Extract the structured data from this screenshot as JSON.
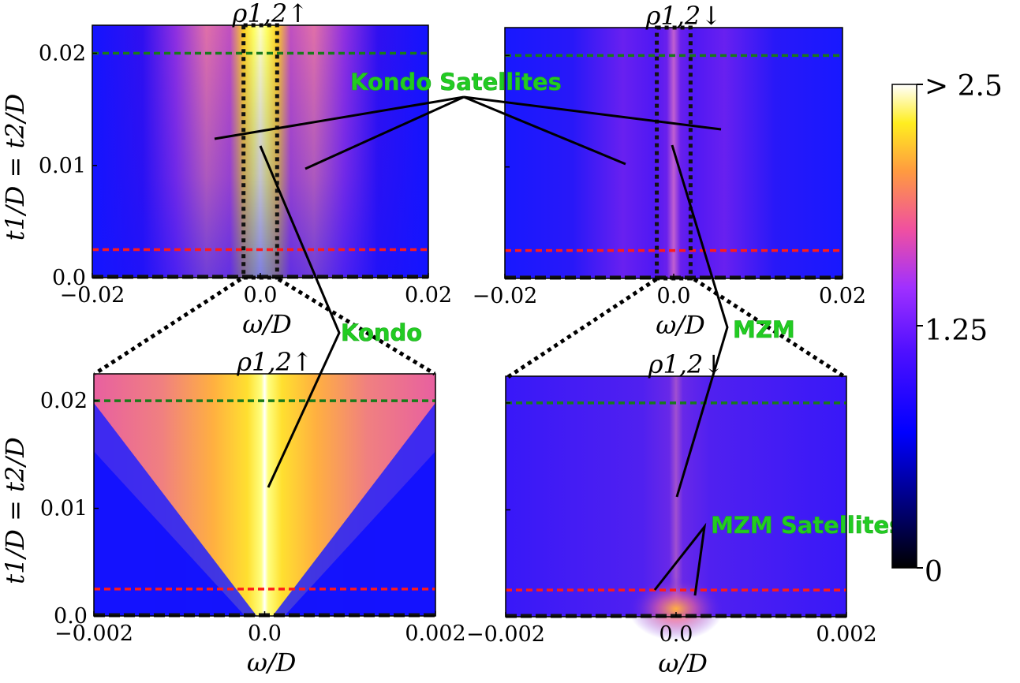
{
  "chart_data": [
    {
      "type": "heatmap",
      "id": "top-left",
      "title": "ρ1,2↑",
      "xlabel": "ω/D",
      "ylabel": "t1/D = t2/D",
      "xlim": [
        -0.02,
        0.02
      ],
      "ylim": [
        0.0,
        0.0225
      ],
      "xticks": [
        "−0.02",
        "0.0",
        "0.02"
      ],
      "yticks": [
        "0.0",
        "0.01",
        "0.02"
      ],
      "hlines": [
        {
          "y": 0.02,
          "color": "#1a7a1a"
        },
        {
          "y": 0.0025,
          "color": "#ff1a1a"
        },
        {
          "y": 0.0,
          "color": "#111111"
        }
      ],
      "zoom_box_x": [
        -0.002,
        0.002
      ]
    },
    {
      "type": "heatmap",
      "id": "top-right",
      "title": "ρ1,2↓",
      "xlabel": "ω/D",
      "ylabel": "",
      "xlim": [
        -0.02,
        0.02
      ],
      "ylim": [
        0.0,
        0.0225
      ],
      "xticks": [
        "−0.02",
        "0.0",
        "0.02"
      ],
      "yticks": [],
      "hlines": [
        {
          "y": 0.02,
          "color": "#1a7a1a"
        },
        {
          "y": 0.0025,
          "color": "#ff1a1a"
        },
        {
          "y": 0.0,
          "color": "#111111"
        }
      ],
      "zoom_box_x": [
        -0.002,
        0.002
      ]
    },
    {
      "type": "heatmap",
      "id": "bottom-left",
      "title": "ρ1,2↑",
      "xlabel": "ω/D",
      "ylabel": "t1/D = t2/D",
      "xlim": [
        -0.002,
        0.002
      ],
      "ylim": [
        0.0,
        0.0225
      ],
      "xticks": [
        "−0.002",
        "0.0",
        "0.002"
      ],
      "yticks": [
        "0.0",
        "0.01",
        "0.02"
      ],
      "hlines": [
        {
          "y": 0.02,
          "color": "#1a7a1a"
        },
        {
          "y": 0.0025,
          "color": "#ff1a1a"
        },
        {
          "y": 0.0,
          "color": "#111111"
        }
      ]
    },
    {
      "type": "heatmap",
      "id": "bottom-right",
      "title": "ρ1,2↓",
      "xlabel": "ω/D",
      "ylabel": "",
      "xlim": [
        -0.002,
        0.002
      ],
      "ylim": [
        0.0,
        0.0225
      ],
      "xticks": [
        "−0.002",
        "0.0",
        "0.002"
      ],
      "yticks": [],
      "hlines": [
        {
          "y": 0.02,
          "color": "#1a7a1a"
        },
        {
          "y": 0.0025,
          "color": "#ff1a1a"
        },
        {
          "y": 0.0,
          "color": "#111111"
        }
      ]
    }
  ],
  "colorbar": {
    "min": 0,
    "max": 2.5,
    "ticks": [
      "0",
      "1.25",
      "> 2.5"
    ],
    "colormap": "gnuplot2"
  },
  "annotations": {
    "kondo_satellites": "Kondo Satellites",
    "kondo": "Kondo",
    "mzm": "MZM",
    "mzm_satellites": "MZM Satellites"
  },
  "colors": {
    "annotation_text": "#22cc22",
    "green_line": "#1a7a1a",
    "red_line": "#ff1a1a"
  }
}
